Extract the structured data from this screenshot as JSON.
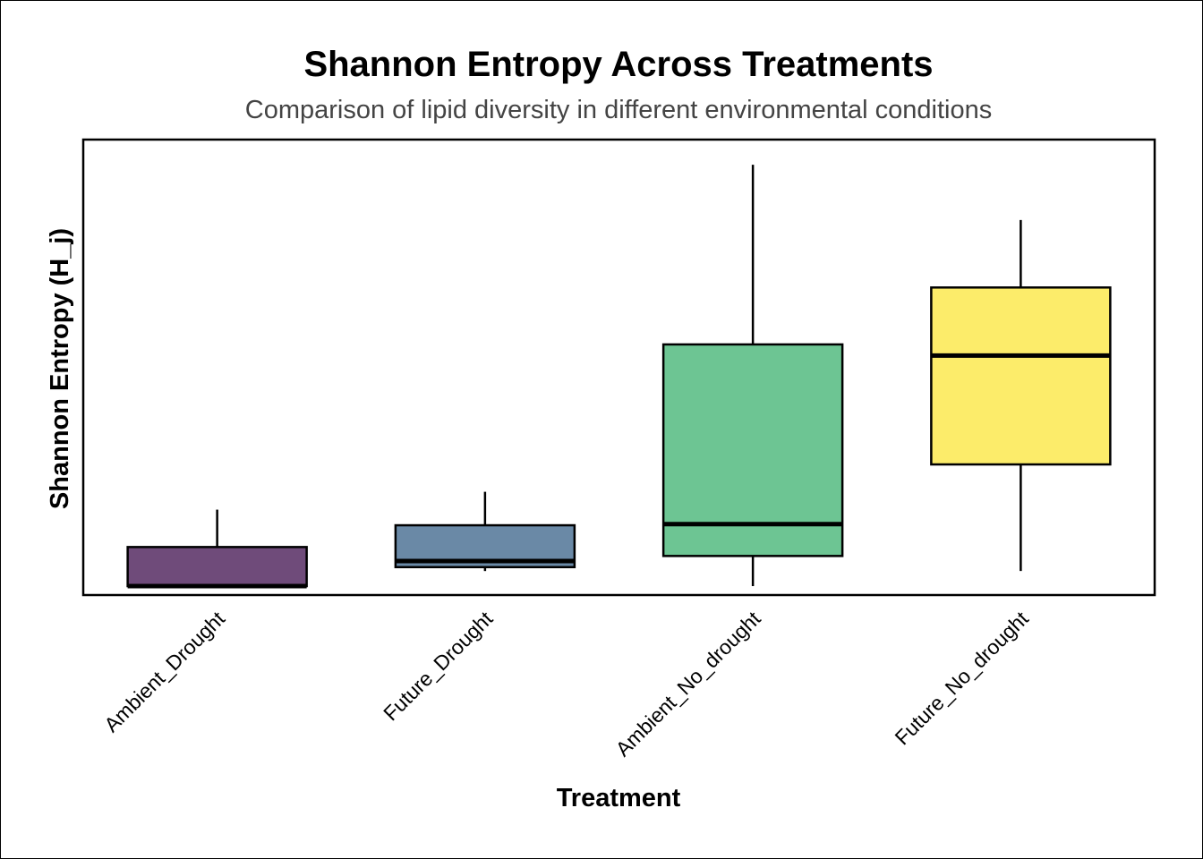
{
  "chart_data": {
    "type": "box",
    "title": "Shannon Entropy Across Treatments",
    "subtitle": "Comparison of lipid diversity in different environmental conditions",
    "xlabel": "Treatment",
    "ylabel": "Shannon Entropy (H_j)",
    "categories": [
      "Ambient_Drought",
      "Future_Drought",
      "Ambient_No_drought",
      "Future_No_drought"
    ],
    "y_ticks_shown": false,
    "grid": false,
    "legend": "none",
    "ylim": [
      -0.016,
      0.8
    ],
    "boxes": [
      {
        "category": "Ambient_Drought",
        "min": 0.0,
        "q1": 0.0,
        "median": 0.0,
        "q3": 0.07,
        "max": 0.137,
        "color": "#6f4b7a"
      },
      {
        "category": "Future_Drought",
        "min": 0.027,
        "q1": 0.034,
        "median": 0.045,
        "q3": 0.109,
        "max": 0.169,
        "color": "#6a89a6"
      },
      {
        "category": "Ambient_No_drought",
        "min": 0.0,
        "q1": 0.054,
        "median": 0.111,
        "q3": 0.433,
        "max": 0.755,
        "color": "#6dc593"
      },
      {
        "category": "Future_No_drought",
        "min": 0.027,
        "q1": 0.218,
        "median": 0.413,
        "q3": 0.535,
        "max": 0.656,
        "color": "#fcec6a"
      }
    ]
  }
}
